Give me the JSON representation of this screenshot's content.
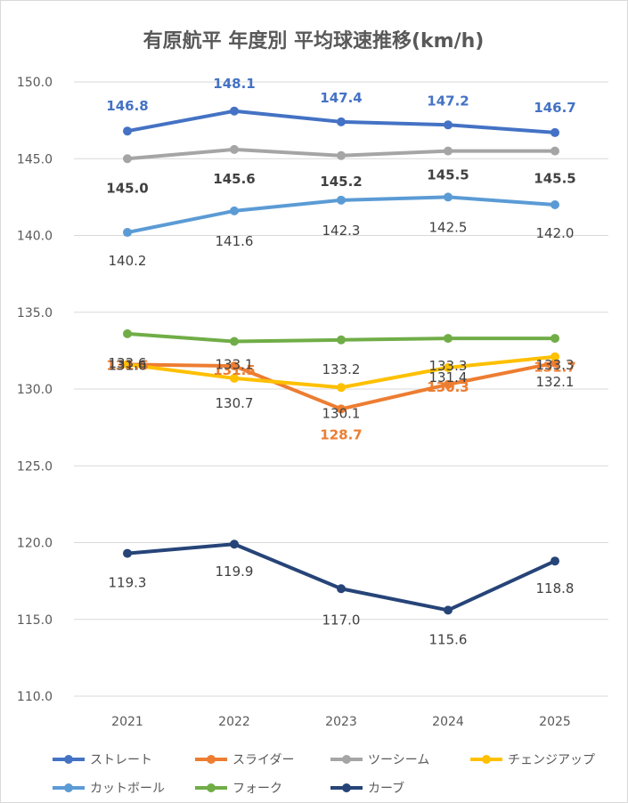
{
  "chart_data": {
    "type": "line",
    "title": "有原航平 年度別 平均球速推移(km/h)",
    "xlabel": "",
    "ylabel": "",
    "categories": [
      "2021",
      "2022",
      "2023",
      "2024",
      "2025"
    ],
    "ylim": [
      110.0,
      150.0
    ],
    "yticks": [
      "110.0",
      "115.0",
      "120.0",
      "125.0",
      "130.0",
      "135.0",
      "140.0",
      "145.0",
      "150.0"
    ],
    "grid": true,
    "legend_position": "bottom",
    "series": [
      {
        "name": "ストレート",
        "color": "#4472C4",
        "values": [
          146.8,
          148.1,
          147.4,
          147.2,
          146.7
        ],
        "labels": [
          "146.8",
          "148.1",
          "147.4",
          "147.2",
          "146.7"
        ],
        "label_color": "#4472C4",
        "label_bold": true
      },
      {
        "name": "スライダー",
        "color": "#ED7D31",
        "values": [
          131.6,
          131.5,
          128.7,
          130.3,
          131.7
        ],
        "labels": [
          "131.6",
          "131.5",
          "128.7",
          "130.3",
          "131.7"
        ],
        "label_color": "#ED7D31",
        "label_bold": true
      },
      {
        "name": "ツーシーム",
        "color": "#A5A5A5",
        "values": [
          145.0,
          145.6,
          145.2,
          145.5,
          145.5
        ],
        "labels": [
          "145.0",
          "145.6",
          "145.2",
          "145.5",
          "145.5"
        ],
        "label_color": "#404040",
        "label_bold": true
      },
      {
        "name": "チェンジアップ",
        "color": "#FFC000",
        "values": [
          131.6,
          130.7,
          130.1,
          131.4,
          132.1
        ],
        "labels": [
          "131.6",
          "130.7",
          "130.1",
          "131.4",
          "132.1"
        ],
        "label_color": "#404040",
        "label_bold": false
      },
      {
        "name": "カットボール",
        "color": "#5B9BD5",
        "values": [
          140.2,
          141.6,
          142.3,
          142.5,
          142.0
        ],
        "labels": [
          "140.2",
          "141.6",
          "142.3",
          "142.5",
          "142.0"
        ],
        "label_color": "#404040",
        "label_bold": false
      },
      {
        "name": "フォーク",
        "color": "#70AD47",
        "values": [
          133.6,
          133.1,
          133.2,
          133.3,
          133.3
        ],
        "labels": [
          "133.6",
          "133.1",
          "133.2",
          "133.3",
          "133.3"
        ],
        "label_color": "#404040",
        "label_bold": false
      },
      {
        "name": "カーブ",
        "color": "#264478",
        "values": [
          119.3,
          119.9,
          117.0,
          115.6,
          118.8
        ],
        "labels": [
          "119.3",
          "119.9",
          "117.0",
          "115.6",
          "118.8"
        ],
        "label_color": "#404040",
        "label_bold": false
      }
    ]
  }
}
